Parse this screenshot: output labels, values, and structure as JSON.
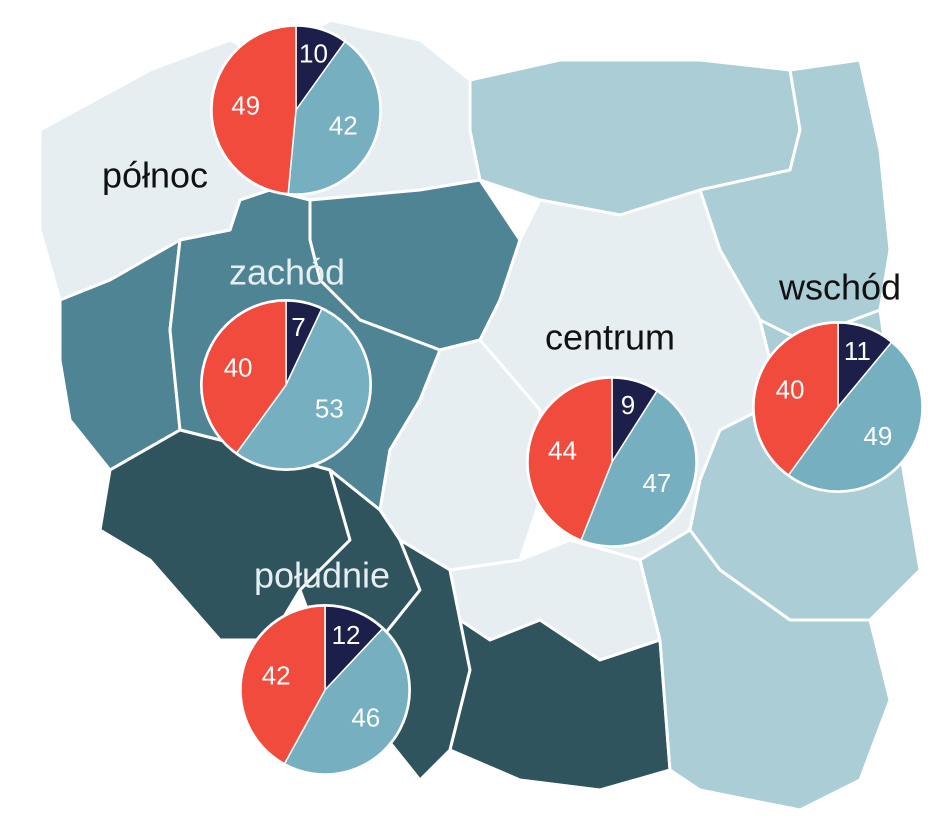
{
  "chart_data": [
    {
      "type": "pie",
      "title": "północ",
      "values": [
        10,
        42,
        49
      ],
      "colors": [
        "#1c1f4a",
        "#75afc0",
        "#f04b3c"
      ]
    },
    {
      "type": "pie",
      "title": "zachód",
      "values": [
        7,
        53,
        40
      ],
      "colors": [
        "#1c1f4a",
        "#75afc0",
        "#f04b3c"
      ]
    },
    {
      "type": "pie",
      "title": "centrum",
      "values": [
        9,
        47,
        44
      ],
      "colors": [
        "#1c1f4a",
        "#75afc0",
        "#f04b3c"
      ]
    },
    {
      "type": "pie",
      "title": "wschód",
      "values": [
        11,
        49,
        40
      ],
      "colors": [
        "#1c1f4a",
        "#75afc0",
        "#f04b3c"
      ]
    },
    {
      "type": "pie",
      "title": "południe",
      "values": [
        12,
        46,
        42
      ],
      "colors": [
        "#1c1f4a",
        "#75afc0",
        "#f04b3c"
      ]
    }
  ]
}
